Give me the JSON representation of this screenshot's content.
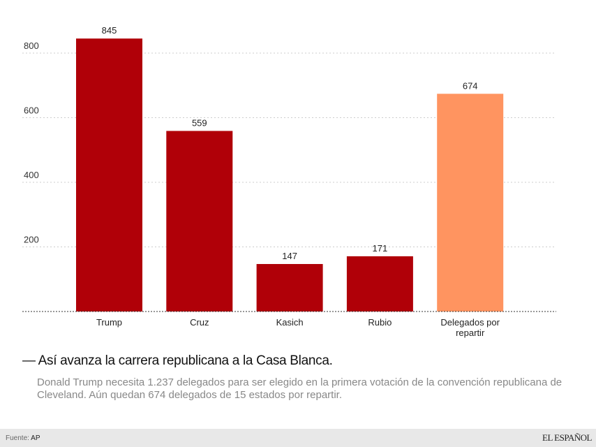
{
  "chart_data": {
    "type": "bar",
    "categories": [
      "Trump",
      "Cruz",
      "Kasich",
      "Rubio",
      "Delegados por repartir"
    ],
    "category_lines": [
      [
        "Trump"
      ],
      [
        "Cruz"
      ],
      [
        "Kasich"
      ],
      [
        "Rubio"
      ],
      [
        "Delegados por",
        "repartir"
      ]
    ],
    "values": [
      845,
      559,
      147,
      171,
      674
    ],
    "colors": [
      "#b00008",
      "#b00008",
      "#b00008",
      "#b00008",
      "#ff9460"
    ],
    "yticks": [
      200,
      400,
      600,
      800
    ],
    "ylim": [
      0,
      900
    ],
    "grid": true,
    "title": "— Así avanza la carrera republicana a la Casa Blanca.",
    "subtitle": "Donald Trump necesita 1.237 delegados para ser elegido en la primera votación de la convención republicana de Cleveland. Aún quedan 674 delegados de 15 estados por repartir."
  },
  "footer": {
    "source_label": "Fuente:",
    "source_value": "AP",
    "logo": "EL ESPAÑOL"
  }
}
